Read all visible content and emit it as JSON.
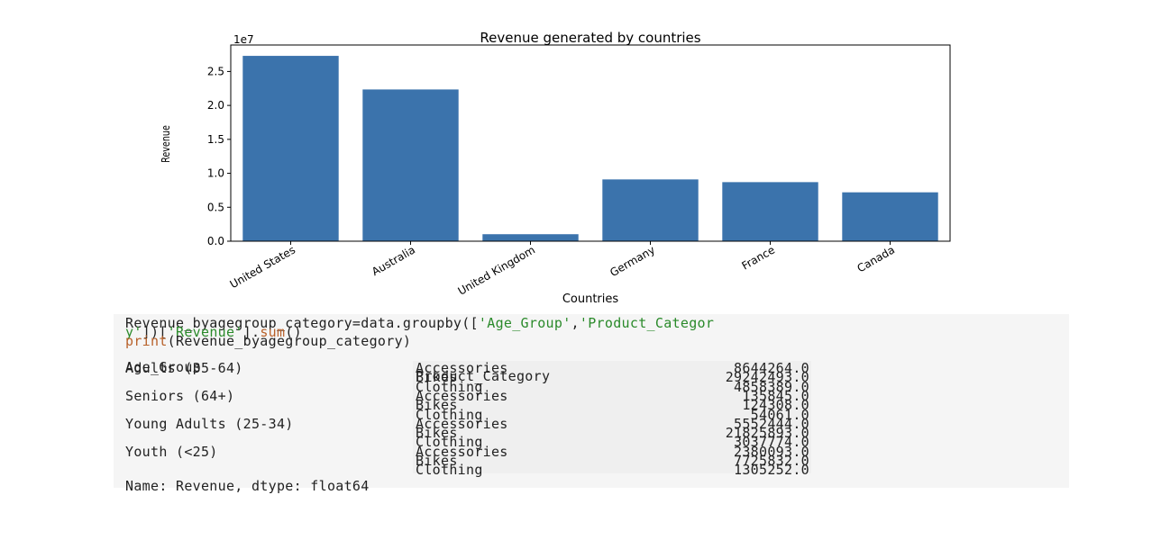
{
  "chart_data": {
    "type": "bar",
    "title": "Revenue generated by countries",
    "xlabel": "Countries",
    "ylabel": "Revenue",
    "offset_label": "1e7",
    "categories": [
      "United States",
      "Australia",
      "United Kingdom",
      "Germany",
      "France",
      "Canada"
    ],
    "values": [
      27300000,
      22350000,
      1030000,
      9100000,
      8700000,
      7200000
    ],
    "ylim": [
      0,
      28900000
    ],
    "yticks": [
      0,
      5000000,
      10000000,
      15000000,
      20000000,
      25000000
    ],
    "ytick_labels": [
      "0.0",
      "0.5",
      "1.0",
      "1.5",
      "2.0",
      "2.5"
    ],
    "bar_color": "#3b73ac"
  },
  "code": {
    "line1a": "Revenue_byagegroup_category=data.groupby([",
    "line1b": "'Age_Group'",
    "line1c": ",",
    "line1d": "'Product_Categor",
    "line2a": "y'",
    "line2b": "])[",
    "line2c": "'Revenue'",
    "line2d": "].",
    "line2e": "sum",
    "line2f": "()",
    "line3a": "print",
    "line3b": "(Revenue_byagegroup_category)"
  },
  "output": {
    "header_group": "Age_Group",
    "header_cat": "Product_Category",
    "rows": [
      {
        "group": "Adults (35-64)",
        "cat": "Accessories",
        "val": "8644264.0"
      },
      {
        "group": "",
        "cat": "Bikes",
        "val": "29242493.0"
      },
      {
        "group": "",
        "cat": "Clothing",
        "val": "4858389.0"
      },
      {
        "group": "Seniors (64+)",
        "cat": "Accessories",
        "val": "135845.0"
      },
      {
        "group": "",
        "cat": "Bikes",
        "val": "124308.0"
      },
      {
        "group": "",
        "cat": "Clothing",
        "val": "54061.0"
      },
      {
        "group": "Young Adults (25-34)",
        "cat": "Accessories",
        "val": "5552444.0"
      },
      {
        "group": "",
        "cat": "Bikes",
        "val": "21825893.0"
      },
      {
        "group": "",
        "cat": "Clothing",
        "val": "3037774.0"
      },
      {
        "group": "Youth (<25)",
        "cat": "Accessories",
        "val": "2380093.0"
      },
      {
        "group": "",
        "cat": "Bikes",
        "val": "7725832.0"
      },
      {
        "group": "",
        "cat": "Clothing",
        "val": "1305252.0"
      }
    ],
    "footer": "Name: Revenue, dtype: float64"
  },
  "colors": {
    "cell_bg": "#f5f5f5",
    "string": "#2a8a2a",
    "builtin": "#b8612a"
  }
}
